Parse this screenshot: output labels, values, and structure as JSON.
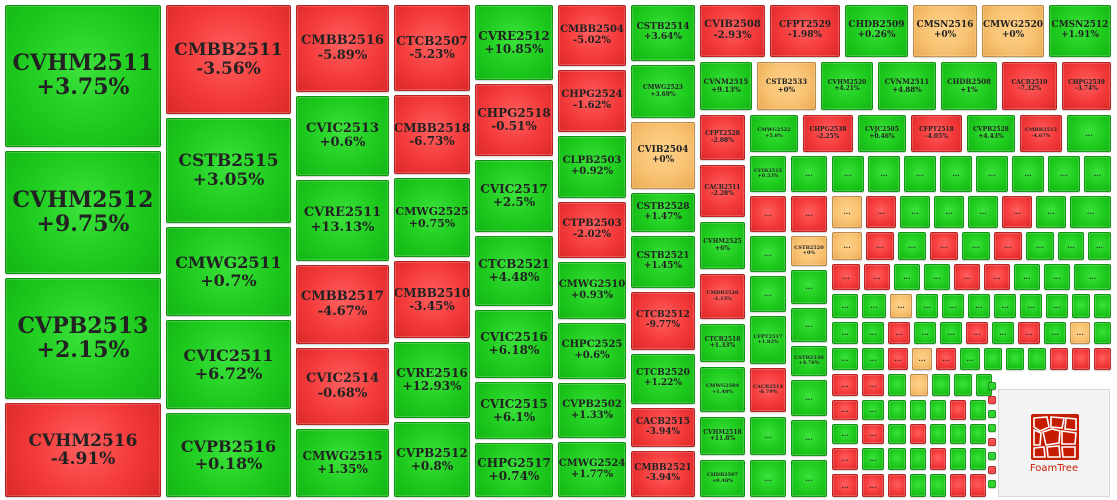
{
  "chart_data": {
    "type": "treemap",
    "colors": {
      "up": "#1ecb1e",
      "down": "#f43a3a",
      "flat": "#f8c272"
    },
    "tiles": [
      {
        "name": "CVHM2511",
        "change": "+3.75%"
      },
      {
        "name": "CVHM2512",
        "change": "+9.75%"
      },
      {
        "name": "CVPB2513",
        "change": "+2.15%"
      },
      {
        "name": "CVHM2516",
        "change": "-4.91%"
      },
      {
        "name": "CMBB2511",
        "change": "-3.56%"
      },
      {
        "name": "CSTB2515",
        "change": "+3.05%"
      },
      {
        "name": "CMWG2511",
        "change": "+0.7%"
      },
      {
        "name": "CVIC2511",
        "change": "+6.72%"
      },
      {
        "name": "CVPB2516",
        "change": "+0.18%"
      },
      {
        "name": "CMBB2516",
        "change": "-5.89%"
      },
      {
        "name": "CVIC2513",
        "change": "+0.6%"
      },
      {
        "name": "CVRE2511",
        "change": "+13.13%"
      },
      {
        "name": "CMBB2517",
        "change": "-4.67%"
      },
      {
        "name": "CVIC2514",
        "change": "-0.68%"
      },
      {
        "name": "CMWG2515",
        "change": "+1.35%"
      },
      {
        "name": "CTCB2507",
        "change": "-5.23%"
      },
      {
        "name": "CMBB2518",
        "change": "-6.73%"
      },
      {
        "name": "CMWG2525",
        "change": "+0.75%"
      },
      {
        "name": "CMBB2510",
        "change": "-3.45%"
      },
      {
        "name": "CVRE2516",
        "change": "+12.93%"
      },
      {
        "name": "CVPB2512",
        "change": "+0.8%"
      },
      {
        "name": "CVRE2512",
        "change": "+10.85%"
      },
      {
        "name": "CHPG2518",
        "change": "-0.51%"
      },
      {
        "name": "CVIC2517",
        "change": "+2.5%"
      },
      {
        "name": "CTCB2521",
        "change": "+4.48%"
      },
      {
        "name": "CVIC2516",
        "change": "+6.18%"
      },
      {
        "name": "CVIC2515",
        "change": "+6.1%"
      },
      {
        "name": "CHPG2517",
        "change": "+0.74%"
      },
      {
        "name": "CMBB2504",
        "change": "-5.02%"
      },
      {
        "name": "CHPG2524",
        "change": "-1.62%"
      },
      {
        "name": "CLPB2503",
        "change": "+0.92%"
      },
      {
        "name": "CTPB2503",
        "change": "-2.02%"
      },
      {
        "name": "CMWG2510",
        "change": "+0.93%"
      },
      {
        "name": "CHPC2525",
        "change": "+0.6%"
      },
      {
        "name": "CVPB2502",
        "change": "+1.33%"
      },
      {
        "name": "CMWG2524",
        "change": "+1.77%"
      },
      {
        "name": "CSTB2514",
        "change": "+3.64%"
      },
      {
        "name": "CMWG2523",
        "change": "+3.69%"
      },
      {
        "name": "CVIB2504",
        "change": "+0%"
      },
      {
        "name": "CSTB2528",
        "change": "+1.47%"
      },
      {
        "name": "CSTB2521",
        "change": "+1.45%"
      },
      {
        "name": "CTCB2512",
        "change": "-9.77%"
      },
      {
        "name": "CTCB2520",
        "change": "+1.22%"
      },
      {
        "name": "CACB2515",
        "change": "-3.94%"
      },
      {
        "name": "CMBB2521",
        "change": "-3.94%"
      },
      {
        "name": "CVIB2508",
        "change": "-2.93%"
      },
      {
        "name": "CFPT2529",
        "change": "-1.98%"
      },
      {
        "name": "CHDB2509",
        "change": "+0.26%"
      },
      {
        "name": "CMSN2516",
        "change": "+0%"
      },
      {
        "name": "CMWG2520",
        "change": "+0%"
      },
      {
        "name": "CMSN2512",
        "change": "+1.91%"
      },
      {
        "name": "CVNM2515",
        "change": "+9.13%"
      },
      {
        "name": "CSTB2533",
        "change": "+0%"
      },
      {
        "name": "CVHM2520",
        "change": "+4.21%"
      },
      {
        "name": "CVNM2511",
        "change": "+4.88%"
      },
      {
        "name": "CHDB2508",
        "change": "+1%"
      },
      {
        "name": "CACB2510",
        "change": "-7.32%"
      },
      {
        "name": "CHPG2539",
        "change": "-3.74%"
      },
      {
        "name": "CFPT2528",
        "change": "-2.08%"
      },
      {
        "name": "CMWG2522",
        "change": "+5.8%"
      },
      {
        "name": "CHPG2538",
        "change": "-2.25%"
      },
      {
        "name": "CVJC2505",
        "change": "+0.46%"
      },
      {
        "name": "CFPT2518",
        "change": "-4.05%"
      },
      {
        "name": "CVPB2528",
        "change": "+4.43%"
      },
      {
        "name": "CMBB2515",
        "change": "-4.67%"
      },
      {
        "name": "CACB2511",
        "change": "-2.28%"
      },
      {
        "name": "CVIB2515",
        "change": "+0.53%"
      },
      {
        "name": "CVHM2525",
        "change": "+6%"
      },
      {
        "name": "CSTB2520",
        "change": "+0%"
      },
      {
        "name": "CMBB2520",
        "change": "-1.15%"
      },
      {
        "name": "CFPT2517",
        "change": "+1.82%"
      },
      {
        "name": "CSTB2530",
        "change": "+4.76%"
      },
      {
        "name": "CTCB2518",
        "change": "+1.33%"
      },
      {
        "name": "CACB2514",
        "change": "-6.79%"
      },
      {
        "name": "CMWG2504",
        "change": "+1.48%"
      },
      {
        "name": "CVHM2518",
        "change": "+11.8%"
      },
      {
        "name": "CHDB2507",
        "change": "+0.46%"
      }
    ],
    "hidden_label": "...",
    "logo_text": "FoamTree"
  }
}
